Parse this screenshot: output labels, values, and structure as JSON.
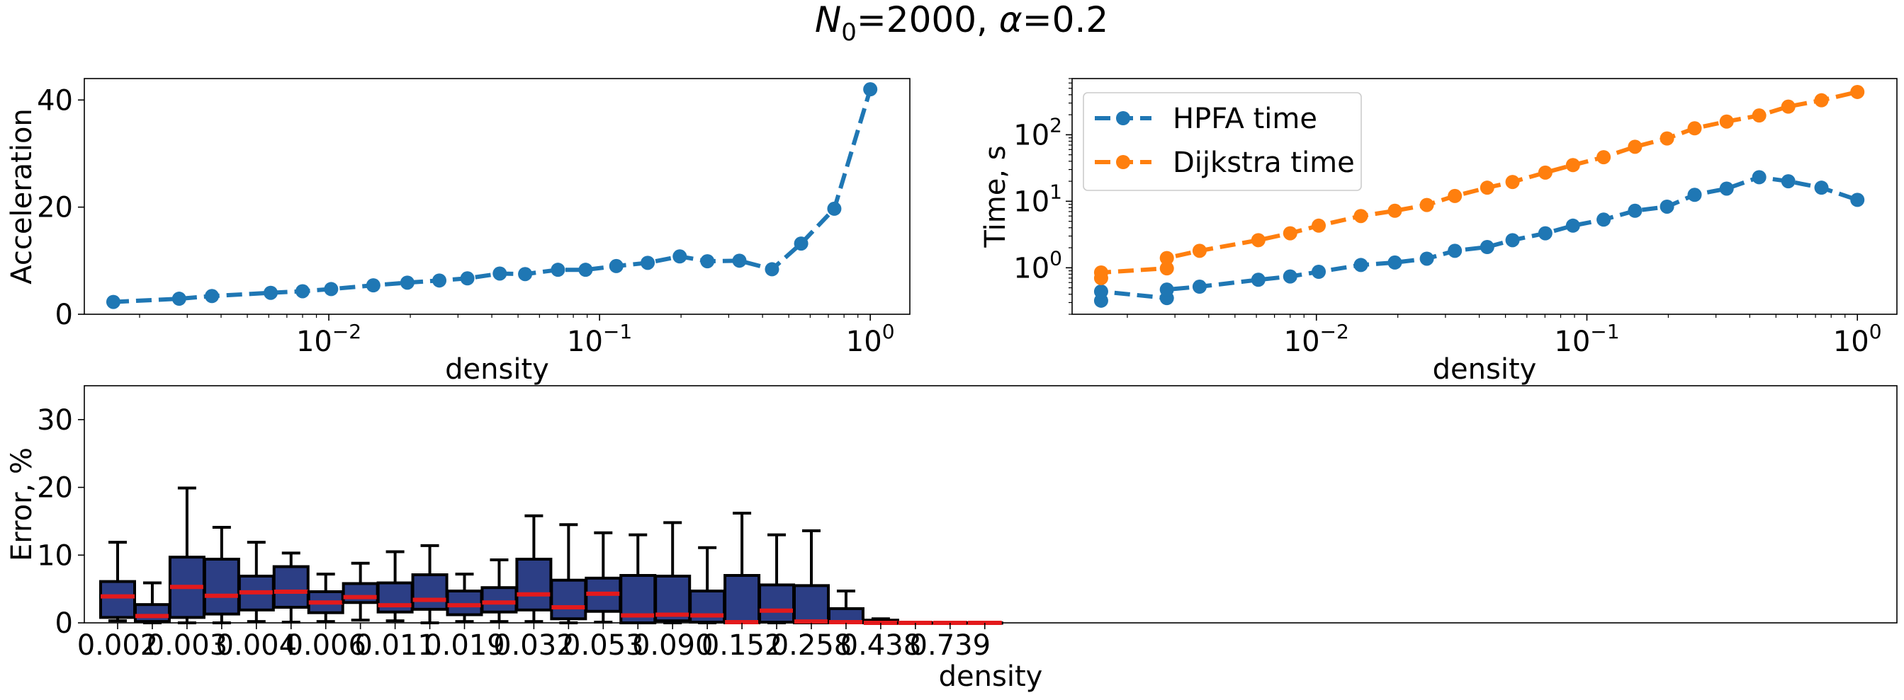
{
  "figure": {
    "suptitle": "N0=2000, α=0.2",
    "suptitle_parts": {
      "n": "N",
      "sub": "0",
      "rest": "=2000, ",
      "alpha": "α",
      "alpha_rest": "=0.2"
    }
  },
  "chart_data": [
    {
      "type": "line",
      "xlabel": "density",
      "ylabel": "Acceleration",
      "x_scale": "log",
      "xlim": [
        0.00125,
        1.4
      ],
      "ylim": [
        0,
        44
      ],
      "yticks": [
        0,
        20,
        40
      ],
      "xticks": [
        {
          "value": 0.01,
          "base": "10",
          "exp": "−2"
        },
        {
          "value": 0.1,
          "base": "10",
          "exp": "−1"
        },
        {
          "value": 1,
          "base": "10",
          "exp": "0"
        }
      ],
      "grid": false,
      "series": [
        {
          "color": "#1f77b4",
          "style": "dashed-marker",
          "x": [
            0.0016,
            0.0028,
            0.0037,
            0.0061,
            0.008,
            0.0102,
            0.0146,
            0.0195,
            0.0256,
            0.0325,
            0.0428,
            0.0531,
            0.0702,
            0.0888,
            0.1153,
            0.1506,
            0.1978,
            0.2502,
            0.3286,
            0.4335,
            0.5554,
            0.7365,
            1.0
          ],
          "y": [
            2.3,
            2.9,
            3.4,
            4.0,
            4.3,
            4.7,
            5.4,
            5.9,
            6.3,
            6.7,
            7.6,
            7.5,
            8.3,
            8.3,
            9.0,
            9.6,
            10.8,
            9.9,
            10.0,
            8.4,
            13.2,
            19.7,
            42.0
          ]
        }
      ]
    },
    {
      "type": "line",
      "xlabel": "density",
      "ylabel": "Time, s",
      "x_scale": "log",
      "y_scale": "log",
      "xlim": [
        0.00125,
        1.4
      ],
      "ylim": [
        0.2,
        700
      ],
      "xticks": [
        {
          "value": 0.01,
          "base": "10",
          "exp": "−2"
        },
        {
          "value": 0.1,
          "base": "10",
          "exp": "−1"
        },
        {
          "value": 1,
          "base": "10",
          "exp": "0"
        }
      ],
      "yticks": [
        {
          "value": 1,
          "base": "10",
          "exp": "0"
        },
        {
          "value": 10,
          "base": "10",
          "exp": "1"
        },
        {
          "value": 100,
          "base": "10",
          "exp": "2"
        }
      ],
      "legend": "top-left",
      "grid": false,
      "series": [
        {
          "name": "HPFA time",
          "color": "#1f77b4",
          "x": [
            0.0016,
            0.0016,
            0.0028,
            0.0028,
            0.0037,
            0.0061,
            0.008,
            0.0102,
            0.0146,
            0.0195,
            0.0256,
            0.0325,
            0.0428,
            0.0531,
            0.0702,
            0.0888,
            0.1153,
            0.1506,
            0.1978,
            0.2502,
            0.3286,
            0.4335,
            0.5554,
            0.7365,
            1.0
          ],
          "y": [
            0.32,
            0.44,
            0.35,
            0.47,
            0.52,
            0.66,
            0.74,
            0.87,
            1.1,
            1.2,
            1.37,
            1.8,
            2.05,
            2.6,
            3.3,
            4.3,
            5.3,
            7.2,
            8.3,
            12.5,
            15.5,
            23.0,
            20.0,
            16.0,
            10.5
          ]
        },
        {
          "name": "Dijkstra time",
          "color": "#ff7f0e",
          "x": [
            0.0016,
            0.0016,
            0.0028,
            0.0028,
            0.0037,
            0.0061,
            0.008,
            0.0102,
            0.0146,
            0.0195,
            0.0256,
            0.0325,
            0.0428,
            0.0531,
            0.0702,
            0.0888,
            0.1153,
            0.1506,
            0.1978,
            0.2502,
            0.3286,
            0.4335,
            0.5554,
            0.7365,
            1.0
          ],
          "y": [
            0.7,
            0.85,
            0.98,
            1.4,
            1.8,
            2.6,
            3.3,
            4.3,
            6.0,
            7.2,
            8.8,
            12.0,
            16.0,
            19.5,
            27.0,
            35.0,
            46.0,
            66.0,
            88.0,
            125.0,
            158.0,
            195.0,
            265.0,
            330.0,
            440.0
          ]
        }
      ]
    },
    {
      "type": "box",
      "xlabel": "density",
      "ylabel": "Error, %",
      "ylim": [
        0,
        35
      ],
      "yticks": [
        0,
        10,
        20,
        30
      ],
      "tick_labels": [
        "0.002",
        "0.003",
        "0.004",
        "0.006",
        "0.011",
        "0.019",
        "0.032",
        "0.053",
        "0.090",
        "0.152",
        "0.258",
        "0.438",
        "0.739"
      ],
      "box_color": "#2c3e85",
      "median_color": "#e31a1c",
      "grid": false,
      "boxes": [
        {
          "whislo": 0.3,
          "q1": 0.8,
          "med": 3.9,
          "q3": 6.1,
          "whishi": 11.9
        },
        {
          "whislo": 0,
          "q1": 0.2,
          "med": 1.0,
          "q3": 2.7,
          "whishi": 5.9
        },
        {
          "whislo": 0,
          "q1": 0.8,
          "med": 5.3,
          "q3": 9.7,
          "whishi": 19.9
        },
        {
          "whislo": 0,
          "q1": 1.3,
          "med": 4.0,
          "q3": 9.4,
          "whishi": 14.1
        },
        {
          "whislo": 0.2,
          "q1": 1.9,
          "med": 4.5,
          "q3": 6.9,
          "whishi": 11.9
        },
        {
          "whislo": 0.1,
          "q1": 2.3,
          "med": 4.6,
          "q3": 8.3,
          "whishi": 10.3
        },
        {
          "whislo": 0.2,
          "q1": 1.5,
          "med": 3.0,
          "q3": 4.6,
          "whishi": 7.2
        },
        {
          "whislo": 0.4,
          "q1": 3.0,
          "med": 3.8,
          "q3": 5.8,
          "whishi": 8.8
        },
        {
          "whislo": 0.3,
          "q1": 1.6,
          "med": 2.6,
          "q3": 5.9,
          "whishi": 10.5
        },
        {
          "whislo": 0,
          "q1": 2.0,
          "med": 3.4,
          "q3": 7.1,
          "whishi": 11.4
        },
        {
          "whislo": 0.2,
          "q1": 1.2,
          "med": 2.6,
          "q3": 4.7,
          "whishi": 7.2
        },
        {
          "whislo": 0.2,
          "q1": 1.6,
          "med": 3.0,
          "q3": 5.2,
          "whishi": 9.3
        },
        {
          "whislo": 0.2,
          "q1": 1.9,
          "med": 4.2,
          "q3": 9.4,
          "whishi": 15.8
        },
        {
          "whislo": 0,
          "q1": 0.6,
          "med": 2.3,
          "q3": 6.3,
          "whishi": 14.5
        },
        {
          "whislo": 0.1,
          "q1": 1.7,
          "med": 4.3,
          "q3": 6.6,
          "whishi": 13.3
        },
        {
          "whislo": 0,
          "q1": 0,
          "med": 1.1,
          "q3": 7.0,
          "whishi": 13.0
        },
        {
          "whislo": 0,
          "q1": 0.3,
          "med": 1.2,
          "q3": 6.9,
          "whishi": 14.8
        },
        {
          "whislo": 0,
          "q1": 0.1,
          "med": 1.1,
          "q3": 4.7,
          "whishi": 11.1
        },
        {
          "whislo": 0,
          "q1": 0,
          "med": 0.1,
          "q3": 7.0,
          "whishi": 16.2
        },
        {
          "whislo": 0,
          "q1": 0.1,
          "med": 1.8,
          "q3": 5.6,
          "whishi": 13.0
        },
        {
          "whislo": 0,
          "q1": 0,
          "med": 0.2,
          "q3": 5.5,
          "whishi": 13.6
        },
        {
          "whislo": 0,
          "q1": 0,
          "med": 0.1,
          "q3": 2.1,
          "whishi": 4.7
        },
        {
          "whislo": 0,
          "q1": 0,
          "med": 0,
          "q3": 0.4,
          "whishi": 0.6
        },
        {
          "whislo": 0,
          "q1": 0,
          "med": 0,
          "q3": 0,
          "whishi": 0
        },
        {
          "whislo": 0,
          "q1": 0,
          "med": 0,
          "q3": 0,
          "whishi": 0
        },
        {
          "whislo": 0,
          "q1": 0,
          "med": 0,
          "q3": 0,
          "whishi": 0
        }
      ]
    }
  ]
}
